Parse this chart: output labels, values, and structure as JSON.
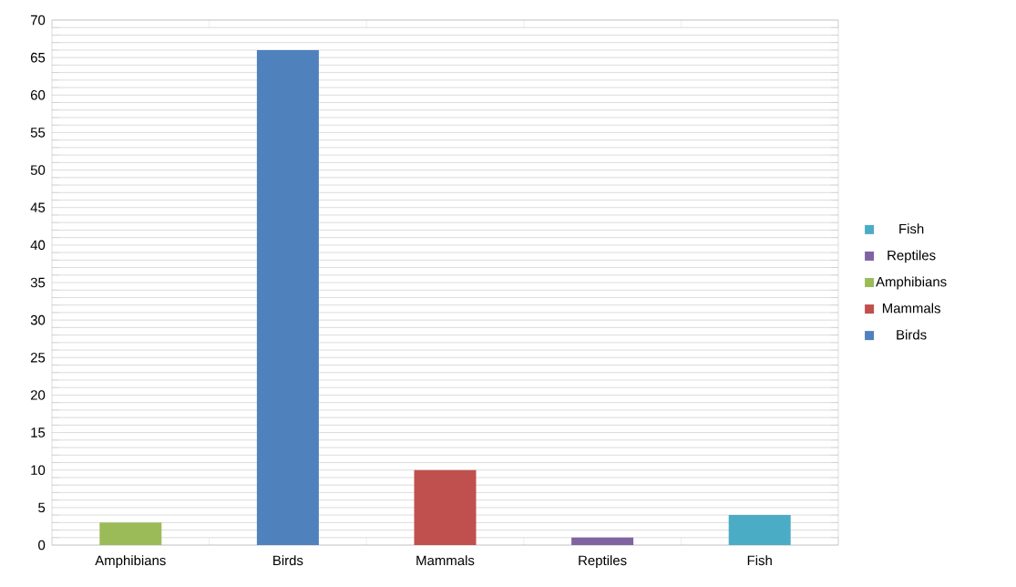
{
  "chart_data": {
    "type": "bar",
    "categories": [
      "Amphibians",
      "Birds",
      "Mammals",
      "Reptiles",
      "Fish"
    ],
    "series": [
      {
        "name": "Birds",
        "color": "#4f81bd",
        "values": [
          null,
          66,
          null,
          null,
          null
        ]
      },
      {
        "name": "Mammals",
        "color": "#c0504d",
        "values": [
          null,
          null,
          10,
          null,
          null
        ]
      },
      {
        "name": "Amphibians",
        "color": "#9bbb59",
        "values": [
          3,
          null,
          null,
          null,
          null
        ]
      },
      {
        "name": "Reptiles",
        "color": "#8064a2",
        "values": [
          null,
          null,
          null,
          1,
          null
        ]
      },
      {
        "name": "Fish",
        "color": "#4bacc6",
        "values": [
          null,
          null,
          null,
          null,
          4
        ]
      }
    ],
    "ylim": [
      0,
      70
    ],
    "yticks": [
      0,
      5,
      10,
      15,
      20,
      25,
      30,
      35,
      40,
      45,
      50,
      55,
      60,
      65,
      70
    ],
    "grid": "y",
    "legend": "right"
  }
}
